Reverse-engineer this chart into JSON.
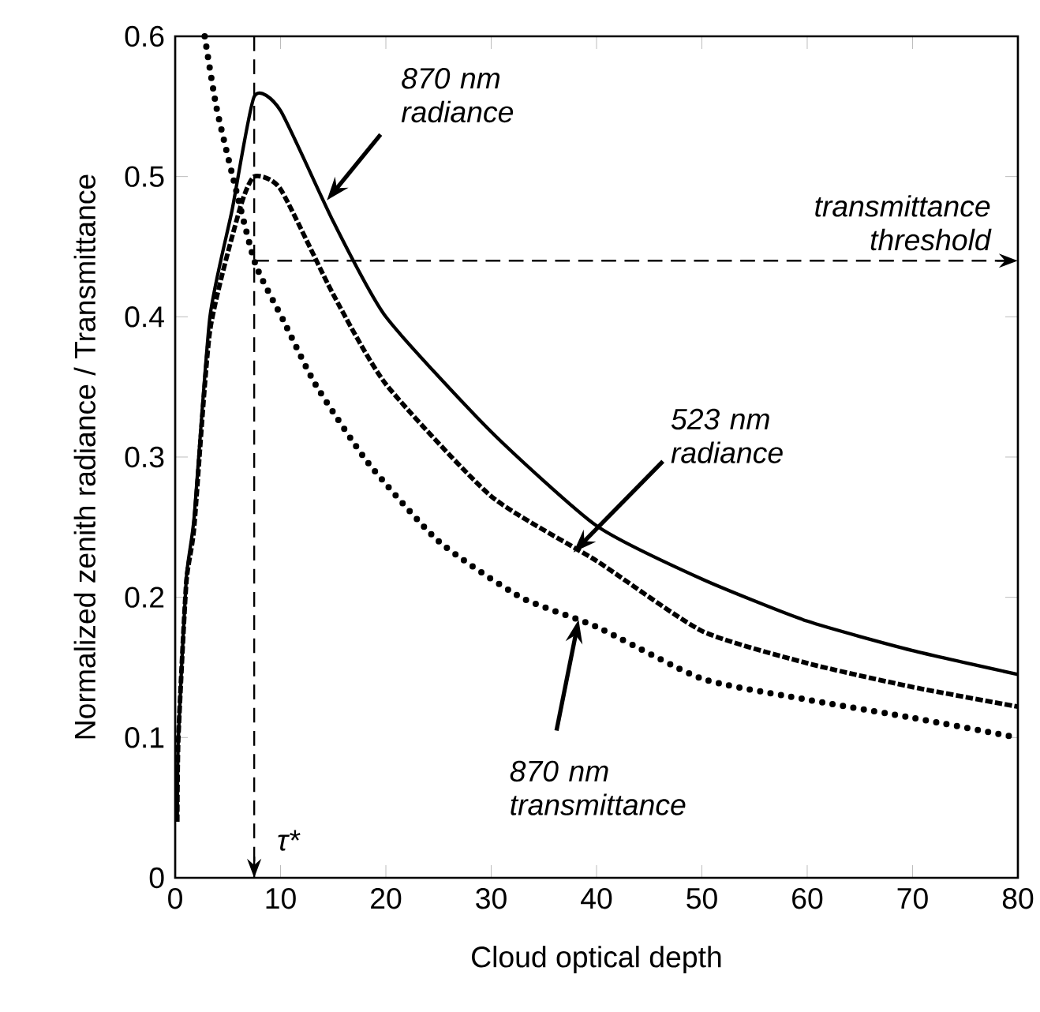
{
  "chart_data": {
    "type": "line",
    "xlabel": "Cloud optical depth",
    "ylabel": "Normalized zenith radiance / Transmittance",
    "xlim": [
      0,
      80
    ],
    "ylim": [
      0,
      0.6
    ],
    "xticks": [
      0,
      10,
      20,
      30,
      40,
      50,
      60,
      70,
      80
    ],
    "yticks": [
      0,
      0.1,
      0.2,
      0.3,
      0.4,
      0.5,
      0.6
    ],
    "grid": false,
    "marker": "none",
    "series": [
      {
        "color": "#000000",
        "line_style": "solid",
        "x": [
          0.2,
          0.3,
          1.05,
          1.8,
          3.3,
          5.4,
          7.5,
          10,
          15,
          20,
          30,
          40,
          50,
          60,
          70,
          80
        ],
        "values": [
          0.04,
          0.1,
          0.213,
          0.257,
          0.4,
          0.476,
          0.557,
          0.547,
          0.468,
          0.4,
          0.318,
          0.251,
          0.213,
          0.183,
          0.162,
          0.145
        ]
      },
      {
        "color": "#000000",
        "line_style": "dashed",
        "x": [
          0.2,
          0.3,
          1.05,
          1.8,
          3.3,
          6.1,
          7.5,
          10,
          15,
          20,
          30,
          40,
          50,
          60,
          70,
          80
        ],
        "values": [
          0.04,
          0.1,
          0.21,
          0.25,
          0.39,
          0.476,
          0.5,
          0.491,
          0.416,
          0.352,
          0.272,
          0.226,
          0.176,
          0.153,
          0.136,
          0.122
        ]
      },
      {
        "color": "#000000",
        "line_style": "dotted",
        "x": [
          2.8,
          3.9,
          5.4,
          7.6,
          10.3,
          13.3,
          18.3,
          25,
          32.8,
          40,
          50,
          60,
          70,
          80
        ],
        "values": [
          0.6,
          0.55,
          0.502,
          0.438,
          0.397,
          0.352,
          0.296,
          0.24,
          0.2,
          0.179,
          0.142,
          0.127,
          0.114,
          0.1
        ]
      }
    ],
    "ref_lines": [
      {
        "axis": "x",
        "value": 7.5,
        "label": "τ*",
        "line_style": "dashed"
      },
      {
        "axis": "y",
        "value": 0.44,
        "label": "transmittance threshold",
        "line_style": "dashed"
      }
    ],
    "annotations": [
      {
        "text": "870 nm radiance",
        "x": 14.4,
        "y": 0.483
      },
      {
        "text": "523 nm radiance",
        "x": 37.8,
        "y": 0.232
      },
      {
        "text": "870 nm transmittance",
        "x": 38.3,
        "y": 0.184
      }
    ]
  }
}
